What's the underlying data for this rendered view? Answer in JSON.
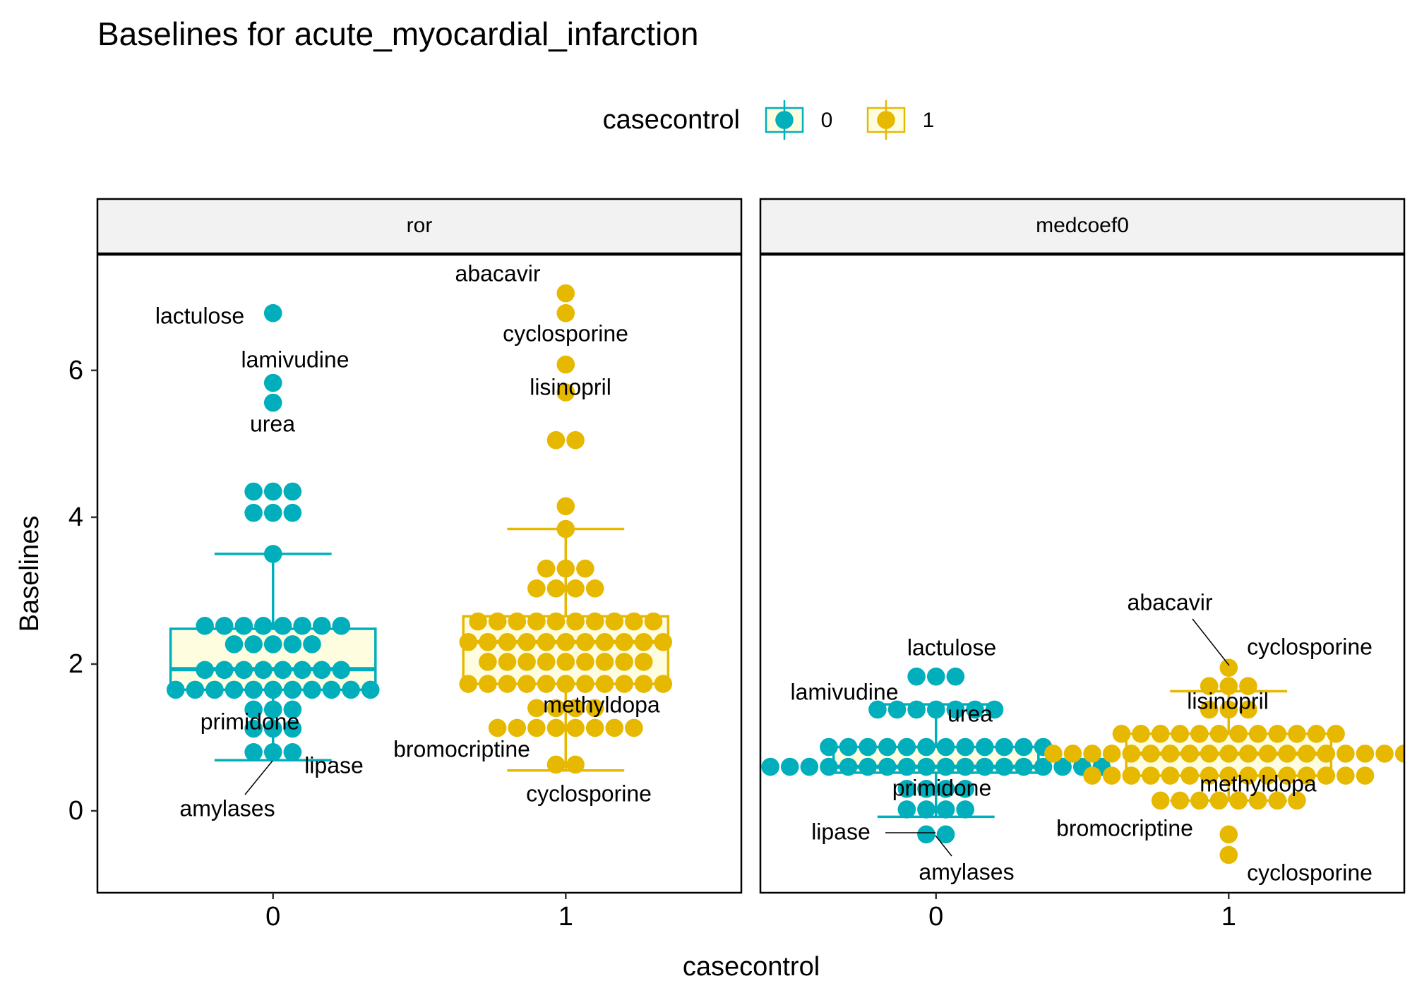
{
  "chart_data": {
    "type": "beeswarm",
    "title": "Baselines for acute_myocardial_infarction",
    "x_label": "casecontrol",
    "y_label": "Baselines",
    "legend_title": "casecontrol",
    "categories": [
      "0",
      "1"
    ],
    "xlim": [
      -0.6,
      1.6
    ],
    "ylim": [
      -1.115,
      7.575
    ],
    "yticks": [
      0,
      2,
      4,
      6
    ],
    "series": [
      {
        "name": "0",
        "color": "#00AFBB"
      },
      {
        "name": "1",
        "color": "#E7B800"
      }
    ],
    "panels": [
      {
        "title": "ror",
        "groups": [
          {
            "values": [
              6.78,
              5.83,
              5.56,
              4.35,
              4.35,
              4.35,
              4.06,
              4.06,
              4.06,
              3.5,
              2.52,
              2.52,
              2.52,
              2.52,
              2.52,
              2.52,
              2.52,
              2.52,
              2.27,
              2.27,
              2.27,
              2.27,
              2.27,
              1.92,
              1.92,
              1.92,
              1.92,
              1.92,
              1.92,
              1.92,
              1.92,
              1.65,
              1.65,
              1.65,
              1.65,
              1.65,
              1.65,
              1.65,
              1.65,
              1.65,
              1.65,
              1.65,
              1.38,
              1.38,
              1.38,
              1.12,
              1.12,
              1.12,
              0.8,
              0.8,
              0.8
            ],
            "box": {
              "whisker_low": 0.69,
              "lower": 1.65,
              "median": 1.93,
              "upper": 2.48,
              "whisker_high": 3.5
            }
          },
          {
            "values": [
              7.05,
              6.78,
              6.08,
              5.7,
              5.05,
              5.05,
              4.15,
              3.84,
              3.3,
              3.3,
              3.3,
              3.03,
              3.03,
              3.03,
              3.03,
              2.58,
              2.58,
              2.58,
              2.58,
              2.58,
              2.58,
              2.58,
              2.58,
              2.58,
              2.58,
              2.3,
              2.3,
              2.3,
              2.3,
              2.3,
              2.3,
              2.3,
              2.3,
              2.3,
              2.3,
              2.3,
              2.03,
              2.03,
              2.03,
              2.03,
              2.03,
              2.03,
              2.03,
              2.03,
              2.03,
              1.73,
              1.73,
              1.73,
              1.73,
              1.73,
              1.73,
              1.73,
              1.73,
              1.73,
              1.73,
              1.73,
              1.4,
              1.4,
              1.4,
              1.4,
              1.13,
              1.13,
              1.13,
              1.13,
              1.13,
              1.13,
              1.13,
              1.13,
              0.63,
              0.63
            ],
            "box": {
              "whisker_low": 0.55,
              "lower": 1.73,
              "median": 2.3,
              "upper": 2.65,
              "whisker_high": 3.84
            }
          }
        ],
        "annotations": [
          "lactulose",
          "lamivudine",
          "urea",
          "primidone",
          "lipase",
          "amylases",
          "abacavir",
          "cyclosporine",
          "lisinopril",
          "methyldopa",
          "bromocriptine",
          "cyclosporine"
        ]
      },
      {
        "title": "medcoef0",
        "groups": [
          {
            "values": [
              1.83,
              1.83,
              1.83,
              1.38,
              1.38,
              1.38,
              1.38,
              1.38,
              1.38,
              1.38,
              0.87,
              0.87,
              0.87,
              0.87,
              0.87,
              0.87,
              0.87,
              0.87,
              0.87,
              0.87,
              0.87,
              0.87,
              0.6,
              0.6,
              0.6,
              0.6,
              0.6,
              0.6,
              0.6,
              0.6,
              0.6,
              0.6,
              0.6,
              0.6,
              0.6,
              0.6,
              0.6,
              0.6,
              0.6,
              0.6,
              0.3,
              0.3,
              0.3,
              0.3,
              0.02,
              0.02,
              0.02,
              0.02,
              -0.32,
              -0.32
            ],
            "box": {
              "whisker_low": -0.08,
              "lower": 0.52,
              "median": 0.6,
              "upper": 0.87,
              "whisker_high": 1.45
            }
          },
          {
            "values": [
              1.95,
              1.7,
              1.7,
              1.7,
              1.38,
              1.38,
              1.38,
              1.05,
              1.05,
              1.05,
              1.05,
              1.05,
              1.05,
              1.05,
              1.05,
              1.05,
              1.05,
              1.05,
              1.05,
              0.78,
              0.78,
              0.78,
              0.78,
              0.78,
              0.78,
              0.78,
              0.78,
              0.78,
              0.78,
              0.78,
              0.78,
              0.78,
              0.78,
              0.78,
              0.78,
              0.78,
              0.78,
              0.78,
              0.48,
              0.48,
              0.48,
              0.48,
              0.48,
              0.48,
              0.48,
              0.48,
              0.48,
              0.48,
              0.48,
              0.48,
              0.48,
              0.48,
              0.48,
              0.14,
              0.14,
              0.14,
              0.14,
              0.14,
              0.14,
              0.14,
              0.14,
              -0.32,
              -0.6
            ],
            "box": {
              "whisker_low": 0.14,
              "lower": 0.48,
              "median": 0.78,
              "upper": 1.05,
              "whisker_high": 1.63
            }
          }
        ],
        "annotations": [
          "lactulose",
          "lamivudine",
          "urea",
          "primidone",
          "lipase",
          "amylases",
          "abacavir",
          "cyclosporine",
          "lisinopril",
          "methyldopa",
          "bromocriptine",
          "cyclosporine"
        ]
      }
    ]
  }
}
